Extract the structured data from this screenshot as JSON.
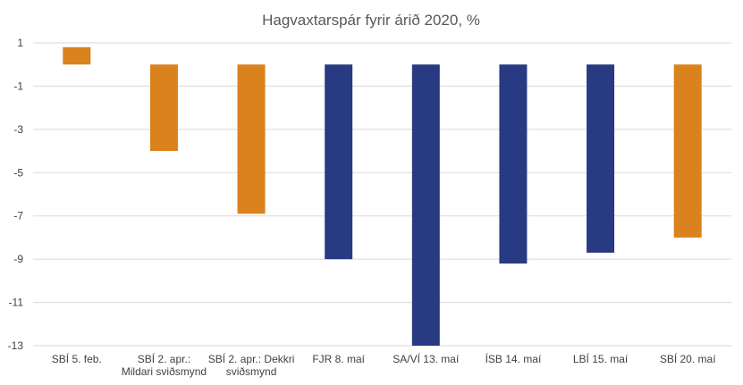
{
  "chart_data": {
    "type": "bar",
    "title": "Hagvaxtarspár  fyrir árið 2020, %",
    "xlabel": "",
    "ylabel": "",
    "ylim": [
      -13,
      1
    ],
    "yticks": [
      1,
      -1,
      -3,
      -5,
      -7,
      -9,
      -11,
      -13
    ],
    "grid": true,
    "categories": [
      [
        "SBÍ 5. feb."
      ],
      [
        "SBÍ 2. apr.:",
        "Mildari sviðsmynd"
      ],
      [
        "SBÍ 2. apr.: Dekkri",
        "sviðsmynd"
      ],
      [
        "FJR 8. maí"
      ],
      [
        "SA/VÍ 13. maí"
      ],
      [
        "ÍSB 14. maí"
      ],
      [
        "LBÍ 15. maí"
      ],
      [
        "SBÍ 20. maí"
      ]
    ],
    "values": [
      0.8,
      -4.0,
      -6.9,
      -9.0,
      -13.0,
      -9.2,
      -8.7,
      -8.0
    ],
    "bar_colors": [
      "#d9821e",
      "#d9821e",
      "#d9821e",
      "#283a82",
      "#283a82",
      "#283a82",
      "#283a82",
      "#d9821e"
    ]
  }
}
